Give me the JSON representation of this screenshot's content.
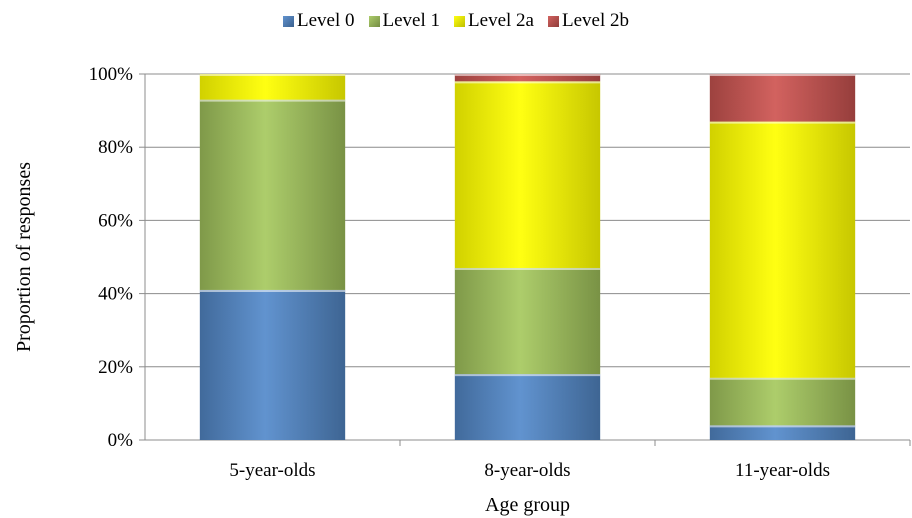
{
  "chart_data": {
    "type": "bar",
    "stacked": true,
    "percent": true,
    "categories": [
      "5-year-olds",
      "8-year-olds",
      "11-year-olds"
    ],
    "series": [
      {
        "name": "Level 0",
        "color": "#4F81BD",
        "values": [
          41,
          18,
          4
        ]
      },
      {
        "name": "Level 1",
        "color": "#9BBB59",
        "values": [
          52,
          29,
          13
        ]
      },
      {
        "name": "Level 2a",
        "color": "#FFFF00",
        "values": [
          7,
          51,
          70
        ]
      },
      {
        "name": "Level 2b",
        "color": "#C0504D",
        "values": [
          0,
          2,
          13
        ]
      }
    ],
    "xlabel": "Age group",
    "ylabel": "Proportion of responses",
    "ylim": [
      0,
      100
    ],
    "yticks": [
      "0%",
      "20%",
      "40%",
      "60%",
      "80%",
      "100%"
    ],
    "grid": true,
    "legend": "top"
  }
}
